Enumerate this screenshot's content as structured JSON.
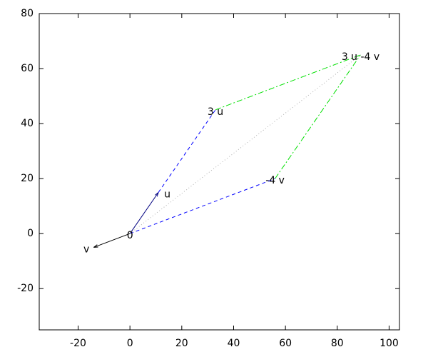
{
  "chart_data": {
    "type": "vector",
    "xlim": [
      -35,
      104
    ],
    "ylim": [
      -35,
      80
    ],
    "xticks": [
      -20,
      0,
      20,
      40,
      60,
      80,
      100
    ],
    "yticks": [
      -20,
      0,
      20,
      40,
      60,
      80
    ],
    "grid": false,
    "series": [
      {
        "color": "#000080",
        "dash": "solid",
        "arrow": true,
        "x": [
          0,
          11
        ],
        "y": [
          0,
          15
        ]
      },
      {
        "color": "#000000",
        "dash": "solid",
        "arrow": true,
        "x": [
          0,
          -14
        ],
        "y": [
          0,
          -5
        ]
      },
      {
        "color": "#0000ff",
        "dash": "dashed",
        "arrow": false,
        "x": [
          11,
          33
        ],
        "y": [
          15,
          45
        ]
      },
      {
        "color": "#0000ff",
        "dash": "dashed",
        "arrow": false,
        "x": [
          0,
          56
        ],
        "y": [
          0,
          20
        ]
      },
      {
        "color": "#00e000",
        "dash": "dashdot",
        "arrow": false,
        "x": [
          33,
          89
        ],
        "y": [
          45,
          65
        ]
      },
      {
        "color": "#00e000",
        "dash": "dashdot",
        "arrow": false,
        "x": [
          56,
          89
        ],
        "y": [
          20,
          65
        ]
      },
      {
        "color": "#b0b0b0",
        "dash": "dotted",
        "arrow": false,
        "x": [
          0,
          89
        ],
        "y": [
          0,
          65
        ]
      }
    ],
    "labels": [
      {
        "text": "0",
        "x": 0,
        "y": 0,
        "align": "center"
      },
      {
        "text": "u",
        "x": 11,
        "y": 15,
        "align": "left"
      },
      {
        "text": "v",
        "x": -14,
        "y": -5,
        "align": "right"
      },
      {
        "text": "3 u",
        "x": 33,
        "y": 45,
        "align": "center"
      },
      {
        "text": "-4 v",
        "x": 56,
        "y": 20,
        "align": "center"
      },
      {
        "text": "3 u -4 v",
        "x": 89,
        "y": 65,
        "align": "center"
      }
    ]
  }
}
